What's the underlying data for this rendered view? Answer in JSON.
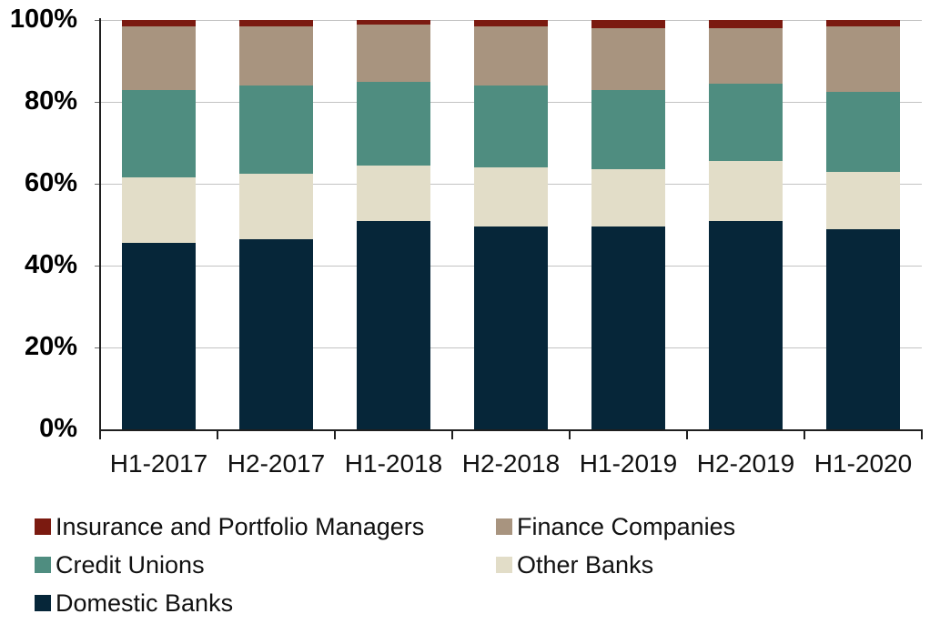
{
  "chart_data": {
    "type": "bar",
    "stacked": true,
    "percent_stacked": true,
    "title": "",
    "xlabel": "",
    "ylabel": "",
    "ylim": [
      0,
      100
    ],
    "grid": true,
    "legend_position": "bottom",
    "ytick_labels": [
      "0%",
      "20%",
      "40%",
      "60%",
      "80%",
      "100%"
    ],
    "ytick_values": [
      0,
      20,
      40,
      60,
      80,
      100
    ],
    "categories": [
      "H1-2017",
      "H2-2017",
      "H1-2018",
      "H2-2018",
      "H1-2019",
      "H2-2019",
      "H1-2020"
    ],
    "series": [
      {
        "name": "Domestic Banks",
        "color": "#062639",
        "values": [
          45.5,
          46.5,
          51.0,
          49.5,
          49.5,
          51.0,
          49.0
        ]
      },
      {
        "name": "Other Banks",
        "color": "#E2DDC8",
        "values": [
          16.0,
          16.0,
          13.5,
          14.5,
          14.0,
          14.5,
          14.0
        ]
      },
      {
        "name": "Credit Unions",
        "color": "#4F8D80",
        "values": [
          21.5,
          21.5,
          20.5,
          20.0,
          19.5,
          19.0,
          19.5
        ]
      },
      {
        "name": "Finance Companies",
        "color": "#A8947F",
        "values": [
          15.5,
          14.5,
          14.0,
          14.5,
          15.0,
          13.5,
          16.0
        ]
      },
      {
        "name": "Insurance and Portfolio Managers",
        "color": "#7B1A10",
        "values": [
          1.5,
          1.5,
          1.0,
          1.5,
          2.0,
          2.0,
          1.5
        ]
      }
    ]
  },
  "legend": {
    "items": [
      {
        "label": "Insurance and Portfolio Managers",
        "color": "#7B1A10"
      },
      {
        "label": "Finance Companies",
        "color": "#A8947F"
      },
      {
        "label": "Credit Unions",
        "color": "#4F8D80"
      },
      {
        "label": "Other Banks",
        "color": "#E2DDC8"
      },
      {
        "label": "Domestic Banks",
        "color": "#062639"
      }
    ]
  },
  "colors": {
    "gridline": "#c3c3c3",
    "axis": "#1f1f1f",
    "background": "#ffffff",
    "text": "#111111"
  }
}
